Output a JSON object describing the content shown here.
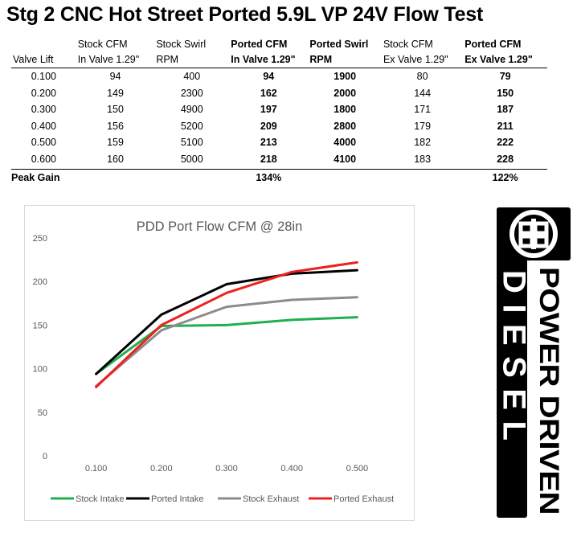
{
  "title": "Stg 2 CNC Hot Street Ported 5.9L VP 24V Flow Test",
  "table": {
    "headers": [
      {
        "line1": "",
        "line2": "Valve Lift",
        "bold": false
      },
      {
        "line1": "Stock CFM",
        "line2": "In Valve 1.29\"",
        "bold": false
      },
      {
        "line1": "Stock Swirl",
        "line2": "RPM",
        "bold": false
      },
      {
        "line1": "Ported CFM",
        "line2": "In Valve 1.29\"",
        "bold": true
      },
      {
        "line1": "Ported Swirl",
        "line2": "RPM",
        "bold": true
      },
      {
        "line1": "Stock CFM",
        "line2": "Ex Valve 1.29\"",
        "bold": false
      },
      {
        "line1": "Ported CFM",
        "line2": "Ex Valve 1.29\"",
        "bold": true
      }
    ],
    "rows": [
      [
        "0.100",
        "94",
        "400",
        "94",
        "1900",
        "80",
        "79"
      ],
      [
        "0.200",
        "149",
        "2300",
        "162",
        "2000",
        "144",
        "150"
      ],
      [
        "0.300",
        "150",
        "4900",
        "197",
        "1800",
        "171",
        "187"
      ],
      [
        "0.400",
        "156",
        "5200",
        "209",
        "2800",
        "179",
        "211"
      ],
      [
        "0.500",
        "159",
        "5100",
        "213",
        "4000",
        "182",
        "222"
      ],
      [
        "0.600",
        "160",
        "5000",
        "218",
        "4100",
        "183",
        "228"
      ]
    ],
    "peak_gain": {
      "label": "Peak Gain",
      "ported_in": "134%",
      "ported_ex": "122%"
    }
  },
  "chart_data": {
    "type": "line",
    "title": "PDD Port Flow CFM @ 28in",
    "x": [
      "0.100",
      "0.200",
      "0.300",
      "0.400",
      "0.500"
    ],
    "ylim": [
      0,
      250
    ],
    "yticks": [
      "0",
      "50",
      "100",
      "150",
      "200",
      "250"
    ],
    "grid": false,
    "legend": "bottom",
    "series": [
      {
        "name": "Stock Intake",
        "color": "#1fb04f",
        "values": [
          94,
          149,
          150,
          156,
          159
        ]
      },
      {
        "name": "Ported Intake",
        "color": "#000000",
        "values": [
          94,
          162,
          197,
          209,
          213
        ]
      },
      {
        "name": "Stock Exhaust",
        "color": "#8c8c8c",
        "values": [
          80,
          144,
          171,
          179,
          182
        ]
      },
      {
        "name": "Ported Exhaust",
        "color": "#ee2020",
        "values": [
          79,
          150,
          187,
          211,
          222
        ]
      }
    ]
  },
  "logo": {
    "word1": "POWER DRIVEN",
    "word2": "DIESEL",
    "bg_color": "#000000",
    "fg_color": "#ffffff"
  }
}
